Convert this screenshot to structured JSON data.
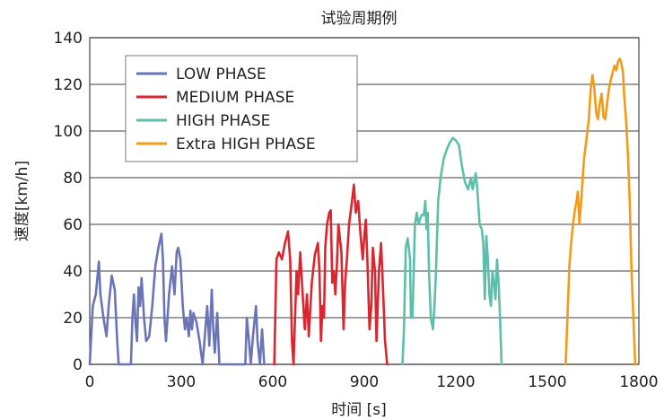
{
  "chart_data": {
    "type": "line",
    "title": "试验周期例",
    "xlabel": "时间 [s]",
    "ylabel": "速度[km/h]",
    "xlim": [
      0,
      1800
    ],
    "ylim": [
      0,
      140
    ],
    "xticks": [
      0,
      300,
      600,
      900,
      1200,
      1500,
      1800
    ],
    "yticks": [
      0,
      20,
      40,
      60,
      80,
      100,
      120,
      140
    ],
    "grid": "horizontal",
    "legend_position": "top-left",
    "series": [
      {
        "name": "LOW PHASE",
        "color": "#6b75b5",
        "points": [
          [
            0,
            0
          ],
          [
            10,
            25
          ],
          [
            20,
            30
          ],
          [
            30,
            44
          ],
          [
            35,
            30
          ],
          [
            45,
            20
          ],
          [
            55,
            12
          ],
          [
            62,
            25
          ],
          [
            72,
            38
          ],
          [
            82,
            32
          ],
          [
            90,
            10
          ],
          [
            95,
            0
          ],
          [
            135,
            0
          ],
          [
            140,
            20
          ],
          [
            145,
            30
          ],
          [
            150,
            18
          ],
          [
            155,
            10
          ],
          [
            160,
            33
          ],
          [
            165,
            25
          ],
          [
            170,
            37
          ],
          [
            178,
            20
          ],
          [
            185,
            10
          ],
          [
            195,
            12
          ],
          [
            205,
            25
          ],
          [
            215,
            42
          ],
          [
            225,
            50
          ],
          [
            235,
            56
          ],
          [
            240,
            45
          ],
          [
            245,
            20
          ],
          [
            250,
            10
          ],
          [
            260,
            30
          ],
          [
            270,
            42
          ],
          [
            278,
            30
          ],
          [
            285,
            48
          ],
          [
            290,
            50
          ],
          [
            297,
            45
          ],
          [
            305,
            25
          ],
          [
            312,
            15
          ],
          [
            318,
            20
          ],
          [
            325,
            12
          ],
          [
            330,
            23
          ],
          [
            335,
            15
          ],
          [
            340,
            22
          ],
          [
            350,
            18
          ],
          [
            360,
            10
          ],
          [
            370,
            0
          ],
          [
            385,
            25
          ],
          [
            392,
            8
          ],
          [
            400,
            32
          ],
          [
            405,
            15
          ],
          [
            410,
            5
          ],
          [
            418,
            22
          ],
          [
            425,
            0
          ],
          [
            510,
            0
          ],
          [
            515,
            20
          ],
          [
            522,
            10
          ],
          [
            528,
            0
          ],
          [
            535,
            12
          ],
          [
            545,
            25
          ],
          [
            550,
            10
          ],
          [
            558,
            0
          ],
          [
            565,
            15
          ],
          [
            572,
            0
          ]
        ]
      },
      {
        "name": "MEDIUM PHASE",
        "color": "#d9262f",
        "points": [
          [
            605,
            0
          ],
          [
            612,
            45
          ],
          [
            620,
            48
          ],
          [
            630,
            45
          ],
          [
            640,
            52
          ],
          [
            650,
            57
          ],
          [
            657,
            45
          ],
          [
            663,
            10
          ],
          [
            668,
            0
          ],
          [
            678,
            40
          ],
          [
            683,
            30
          ],
          [
            690,
            48
          ],
          [
            698,
            30
          ],
          [
            705,
            15
          ],
          [
            712,
            30
          ],
          [
            718,
            12
          ],
          [
            728,
            35
          ],
          [
            738,
            47
          ],
          [
            748,
            52
          ],
          [
            753,
            40
          ],
          [
            758,
            10
          ],
          [
            763,
            25
          ],
          [
            768,
            20
          ],
          [
            772,
            50
          ],
          [
            778,
            60
          ],
          [
            785,
            65
          ],
          [
            790,
            66
          ],
          [
            795,
            35
          ],
          [
            800,
            40
          ],
          [
            805,
            30
          ],
          [
            810,
            42
          ],
          [
            815,
            60
          ],
          [
            825,
            48
          ],
          [
            832,
            15
          ],
          [
            837,
            35
          ],
          [
            843,
            45
          ],
          [
            850,
            60
          ],
          [
            858,
            68
          ],
          [
            866,
            77
          ],
          [
            872,
            65
          ],
          [
            880,
            70
          ],
          [
            888,
            55
          ],
          [
            895,
            45
          ],
          [
            900,
            55
          ],
          [
            905,
            62
          ],
          [
            910,
            45
          ],
          [
            917,
            15
          ],
          [
            923,
            25
          ],
          [
            928,
            50
          ],
          [
            935,
            40
          ],
          [
            940,
            10
          ],
          [
            948,
            40
          ],
          [
            955,
            52
          ],
          [
            962,
            30
          ],
          [
            968,
            10
          ],
          [
            975,
            0
          ]
        ]
      },
      {
        "name": "HIGH PHASE",
        "color": "#5dbfa9",
        "points": [
          [
            1025,
            0
          ],
          [
            1030,
            15
          ],
          [
            1036,
            50
          ],
          [
            1042,
            54
          ],
          [
            1050,
            45
          ],
          [
            1053,
            20
          ],
          [
            1058,
            20
          ],
          [
            1062,
            40
          ],
          [
            1066,
            60
          ],
          [
            1072,
            65
          ],
          [
            1078,
            60
          ],
          [
            1082,
            62
          ],
          [
            1088,
            64
          ],
          [
            1095,
            64
          ],
          [
            1100,
            70
          ],
          [
            1104,
            58
          ],
          [
            1108,
            65
          ],
          [
            1112,
            40
          ],
          [
            1118,
            20
          ],
          [
            1125,
            15
          ],
          [
            1130,
            25
          ],
          [
            1135,
            40
          ],
          [
            1142,
            70
          ],
          [
            1150,
            80
          ],
          [
            1160,
            88
          ],
          [
            1170,
            92
          ],
          [
            1180,
            95
          ],
          [
            1190,
            97
          ],
          [
            1200,
            96
          ],
          [
            1210,
            94
          ],
          [
            1220,
            85
          ],
          [
            1230,
            78
          ],
          [
            1240,
            75
          ],
          [
            1250,
            80
          ],
          [
            1255,
            75
          ],
          [
            1260,
            78
          ],
          [
            1265,
            82
          ],
          [
            1270,
            76
          ],
          [
            1278,
            60
          ],
          [
            1285,
            58
          ],
          [
            1290,
            52
          ],
          [
            1295,
            28
          ],
          [
            1300,
            55
          ],
          [
            1305,
            45
          ],
          [
            1310,
            30
          ],
          [
            1315,
            25
          ],
          [
            1320,
            40
          ],
          [
            1325,
            35
          ],
          [
            1330,
            28
          ],
          [
            1335,
            45
          ],
          [
            1340,
            35
          ],
          [
            1345,
            20
          ],
          [
            1350,
            0
          ]
        ]
      },
      {
        "name": "Extra HIGH PHASE",
        "color": "#f29b18",
        "points": [
          [
            1560,
            0
          ],
          [
            1566,
            20
          ],
          [
            1572,
            42
          ],
          [
            1578,
            52
          ],
          [
            1584,
            60
          ],
          [
            1590,
            66
          ],
          [
            1596,
            70
          ],
          [
            1600,
            74
          ],
          [
            1605,
            60
          ],
          [
            1612,
            72
          ],
          [
            1620,
            88
          ],
          [
            1628,
            96
          ],
          [
            1636,
            105
          ],
          [
            1642,
            118
          ],
          [
            1648,
            124
          ],
          [
            1654,
            118
          ],
          [
            1660,
            108
          ],
          [
            1666,
            105
          ],
          [
            1672,
            112
          ],
          [
            1678,
            116
          ],
          [
            1684,
            106
          ],
          [
            1690,
            105
          ],
          [
            1696,
            112
          ],
          [
            1702,
            118
          ],
          [
            1708,
            122
          ],
          [
            1714,
            125
          ],
          [
            1720,
            128
          ],
          [
            1726,
            126
          ],
          [
            1732,
            130
          ],
          [
            1738,
            131
          ],
          [
            1744,
            128
          ],
          [
            1748,
            125
          ],
          [
            1752,
            115
          ],
          [
            1758,
            105
          ],
          [
            1764,
            90
          ],
          [
            1770,
            70
          ],
          [
            1776,
            40
          ],
          [
            1782,
            20
          ],
          [
            1788,
            0
          ]
        ]
      }
    ]
  }
}
